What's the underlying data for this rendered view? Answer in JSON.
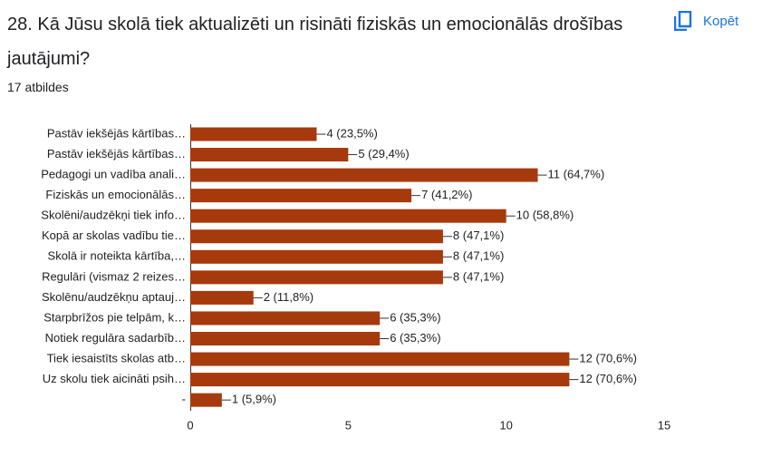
{
  "copy_button": "Kopēt",
  "responses": "17 atbildes",
  "chart_data": {
    "type": "bar",
    "orientation": "horizontal",
    "title": "28. Kā Jūsu skolā tiek aktualizēti un risināti fiziskās un emocionālās drošības jautājumi?",
    "categories": [
      "Pastāv iekšējās kārtības…",
      "Pastāv iekšējās kārtības…",
      "Pedagogi un vadība anali…",
      "Fiziskās un emocionālās…",
      "Skolēni/audzēkņi tiek info…",
      "Kopā ar skolas vadību tie…",
      "Skolā ir noteikta kārtība,…",
      "Regulāri (vismaz 2 reizes…",
      "Skolēnu/audzēkņu aptauj…",
      "Starpbrīžos pie telpām, k…",
      "Notiek regulāra sadarbīb…",
      "Tiek iesaistīts skolas atb…",
      "Uz skolu tiek aicināti psih…",
      "-"
    ],
    "values": [
      4,
      5,
      11,
      7,
      10,
      8,
      8,
      8,
      2,
      6,
      6,
      12,
      12,
      1
    ],
    "value_labels": [
      "4 (23,5%)",
      "5 (29,4%)",
      "11 (64,7%)",
      "7 (41,2%)",
      "10 (58,8%)",
      "8 (47,1%)",
      "8 (47,1%)",
      "8 (47,1%)",
      "2 (11,8%)",
      "6 (35,3%)",
      "6 (35,3%)",
      "12 (70,6%)",
      "12 (70,6%)",
      "1 (5,9%)"
    ],
    "color": "#a63a0c",
    "xlim": [
      0,
      15
    ],
    "xticks": [
      0,
      5,
      10,
      15
    ],
    "grid": false
  }
}
